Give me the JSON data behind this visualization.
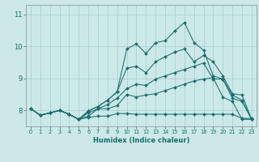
{
  "xlabel": "Humidex (Indice chaleur)",
  "background_color": "#cce8e8",
  "grid_color": "#aacccc",
  "line_color": "#1a6e6e",
  "xlim": [
    -0.5,
    23.5
  ],
  "ylim": [
    7.5,
    11.3
  ],
  "xticks": [
    0,
    1,
    2,
    3,
    4,
    5,
    6,
    7,
    8,
    9,
    10,
    11,
    12,
    13,
    14,
    15,
    16,
    17,
    18,
    19,
    20,
    21,
    22,
    23
  ],
  "yticks": [
    8,
    9,
    10,
    11
  ],
  "series": [
    [
      8.05,
      7.85,
      7.92,
      8.0,
      7.88,
      7.72,
      7.78,
      7.82,
      7.82,
      7.9,
      7.9,
      7.88,
      7.88,
      7.88,
      7.88,
      7.88,
      7.88,
      7.88,
      7.88,
      7.88,
      7.88,
      7.88,
      7.75,
      7.75
    ],
    [
      8.05,
      7.85,
      7.92,
      8.0,
      7.88,
      7.72,
      7.82,
      8.05,
      8.05,
      8.15,
      8.5,
      8.42,
      8.48,
      8.52,
      8.62,
      8.72,
      8.82,
      8.92,
      8.98,
      9.02,
      8.42,
      8.28,
      7.72,
      7.72
    ],
    [
      8.05,
      7.85,
      7.92,
      8.0,
      7.88,
      7.72,
      7.92,
      8.05,
      8.18,
      8.38,
      8.68,
      8.82,
      8.78,
      8.98,
      9.08,
      9.18,
      9.28,
      9.38,
      9.48,
      8.98,
      8.98,
      8.48,
      8.32,
      7.72
    ],
    [
      8.05,
      7.85,
      7.92,
      8.0,
      7.88,
      7.72,
      7.98,
      8.12,
      8.32,
      8.58,
      9.32,
      9.38,
      9.18,
      9.52,
      9.68,
      9.82,
      9.92,
      9.52,
      9.72,
      9.52,
      9.08,
      8.52,
      8.48,
      7.72
    ],
    [
      8.05,
      7.85,
      7.92,
      8.0,
      7.88,
      7.72,
      7.98,
      8.12,
      8.32,
      8.58,
      9.92,
      10.08,
      9.78,
      10.12,
      10.18,
      10.48,
      10.75,
      10.12,
      9.88,
      9.08,
      8.98,
      8.38,
      8.28,
      7.72
    ]
  ]
}
